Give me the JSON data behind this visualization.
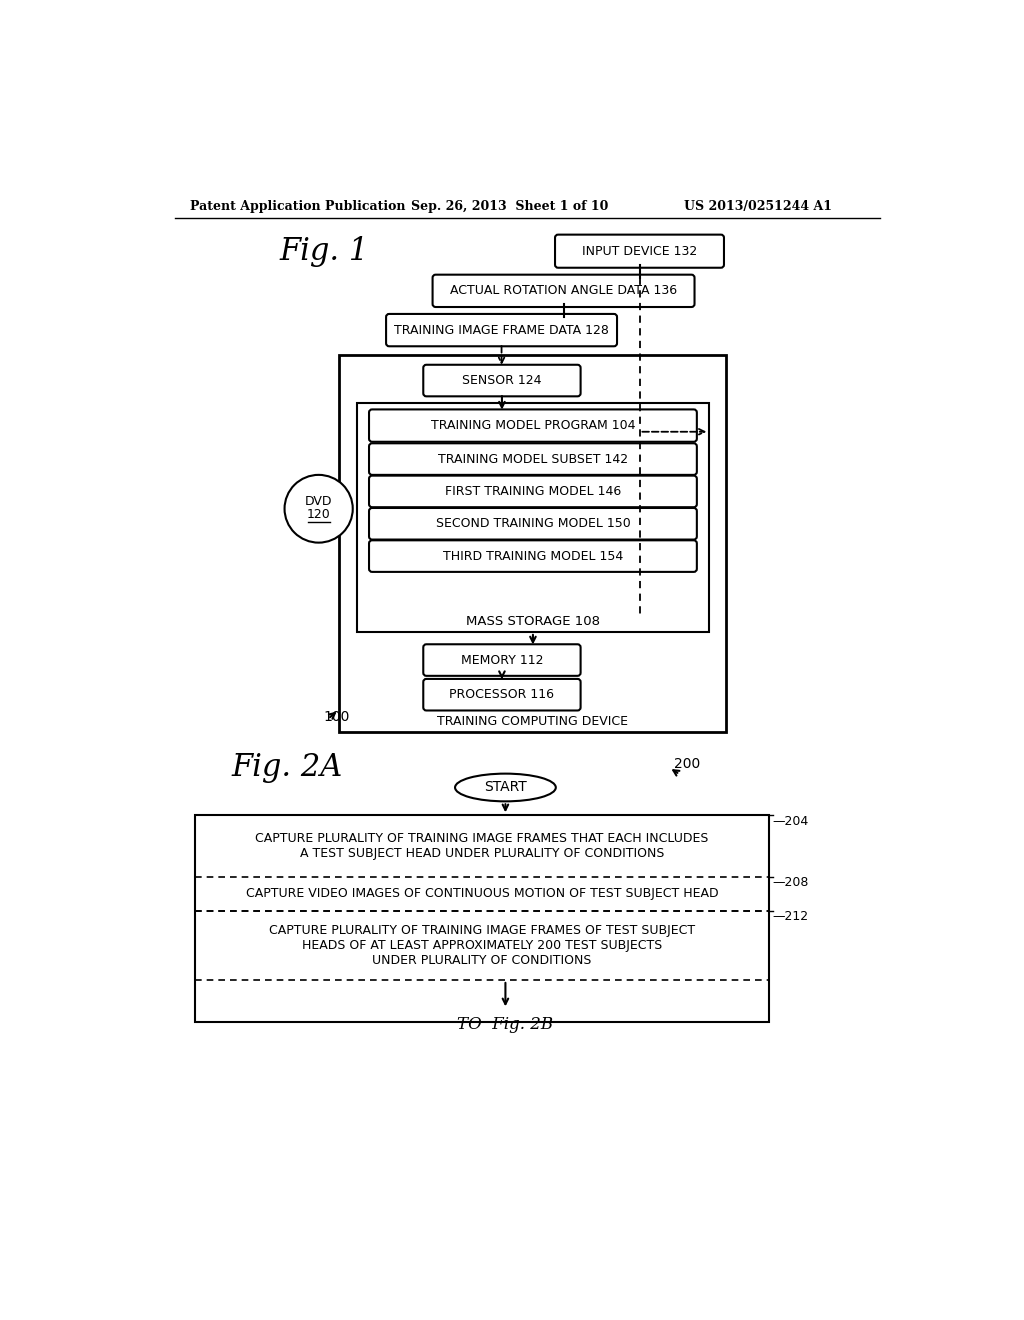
{
  "bg_color": "#ffffff",
  "header_line1": "Patent Application Publication",
  "header_line2": "Sep. 26, 2013  Sheet 1 of 10",
  "header_line3": "US 2013/0251244 A1",
  "fig1_label": "Fig. 1",
  "fig2a_label": "Fig. 2A",
  "label_100": "100",
  "label_200": "200",
  "label_204": "—204",
  "label_208": "—208",
  "label_212": "—212",
  "box_input_device": "INPUT DEVICE 132",
  "box_actual_rotation": "ACTUAL ROTATION ANGLE DATA 136",
  "box_training_image_frame": "TRAINING IMAGE FRAME DATA 128",
  "box_sensor": "SENSOR 124",
  "box_training_model_program": "TRAINING MODEL PROGRAM 104",
  "box_training_model_subset": "TRAINING MODEL SUBSET 142",
  "box_first_training_model": "FIRST TRAINING MODEL 146",
  "box_second_training_model": "SECOND TRAINING MODEL 150",
  "box_third_training_model": "THIRD TRAINING MODEL 154",
  "box_mass_storage": "MASS STORAGE 108",
  "box_memory": "MEMORY 112",
  "box_processor": "PROCESSOR 116",
  "label_training_computing": "TRAINING COMPUTING DEVICE",
  "oval_start": "START",
  "box_204_text": "CAPTURE PLURALITY OF TRAINING IMAGE FRAMES THAT EACH INCLUDES\nA TEST SUBJECT HEAD UNDER PLURALITY OF CONDITIONS",
  "box_208_text": "CAPTURE VIDEO IMAGES OF CONTINUOUS MOTION OF TEST SUBJECT HEAD",
  "box_212_text": "CAPTURE PLURALITY OF TRAINING IMAGE FRAMES OF TEST SUBJECT\nHEADS OF AT LEAST APPROXIMATELY 200 TEST SUBJECTS\nUNDER PLURALITY OF CONDITIONS",
  "to_fig2b": "TO  Fig. 2B"
}
